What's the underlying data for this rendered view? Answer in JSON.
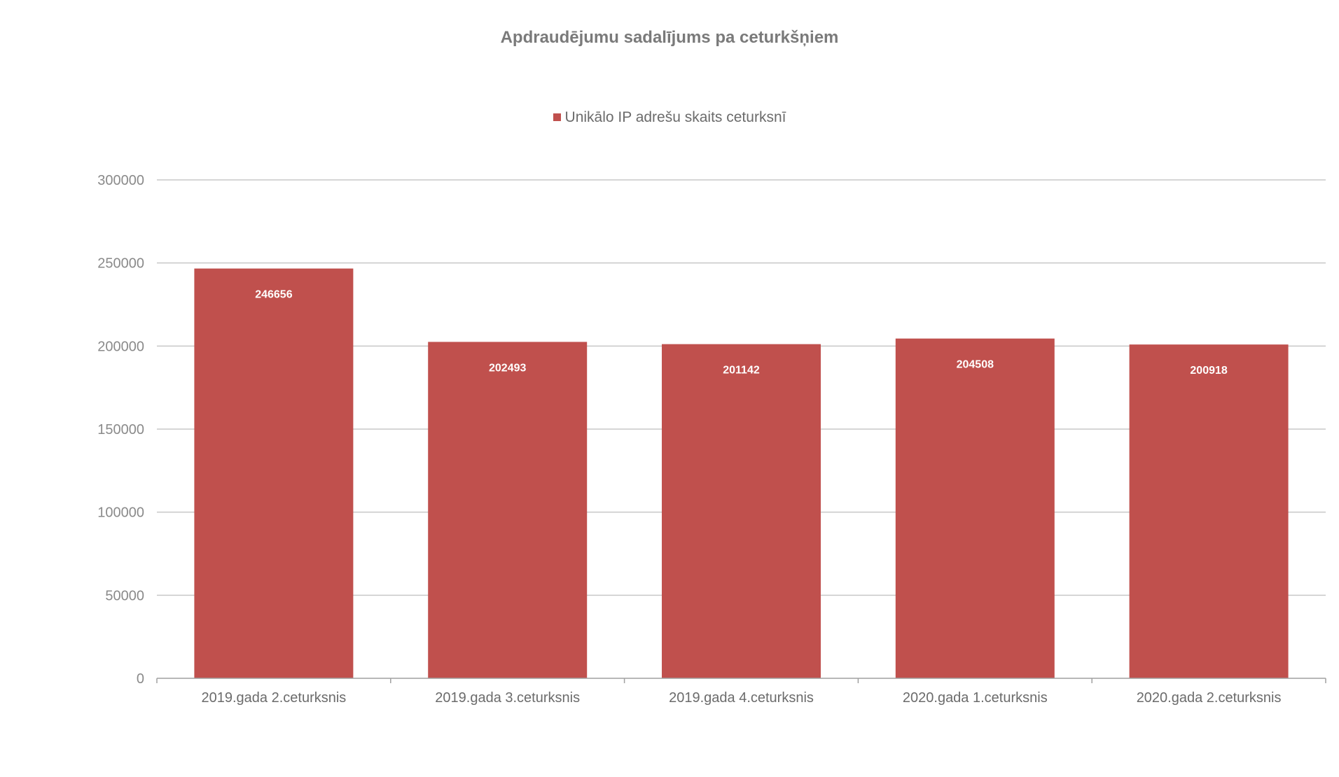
{
  "chart_data": {
    "type": "bar",
    "title": "Apdraudējumu sadalījums pa ceturkšņiem",
    "categories": [
      "2019.gada 2.ceturksnis",
      "2019.gada 3.ceturksnis",
      "2019.gada 4.ceturksnis",
      "2020.gada 1.ceturksnis",
      "2020.gada 2.ceturksnis"
    ],
    "series": [
      {
        "name": "Unikālo IP adrešu skaits ceturksnī",
        "values": [
          246656,
          202493,
          201142,
          204508,
          200918
        ],
        "color": "#c0504d"
      }
    ],
    "data_labels": [
      "246656",
      "202493",
      "201142",
      "204508",
      "200918"
    ],
    "ylim": [
      0,
      300000
    ],
    "yticks": [
      0,
      50000,
      100000,
      150000,
      200000,
      250000,
      300000
    ],
    "ytick_labels": [
      "0",
      "50000",
      "100000",
      "150000",
      "200000",
      "250000",
      "300000"
    ],
    "grid": true,
    "legend_position": "top",
    "gridline_color": "#c8c8c8",
    "axis_color": "#a0a0a0"
  }
}
